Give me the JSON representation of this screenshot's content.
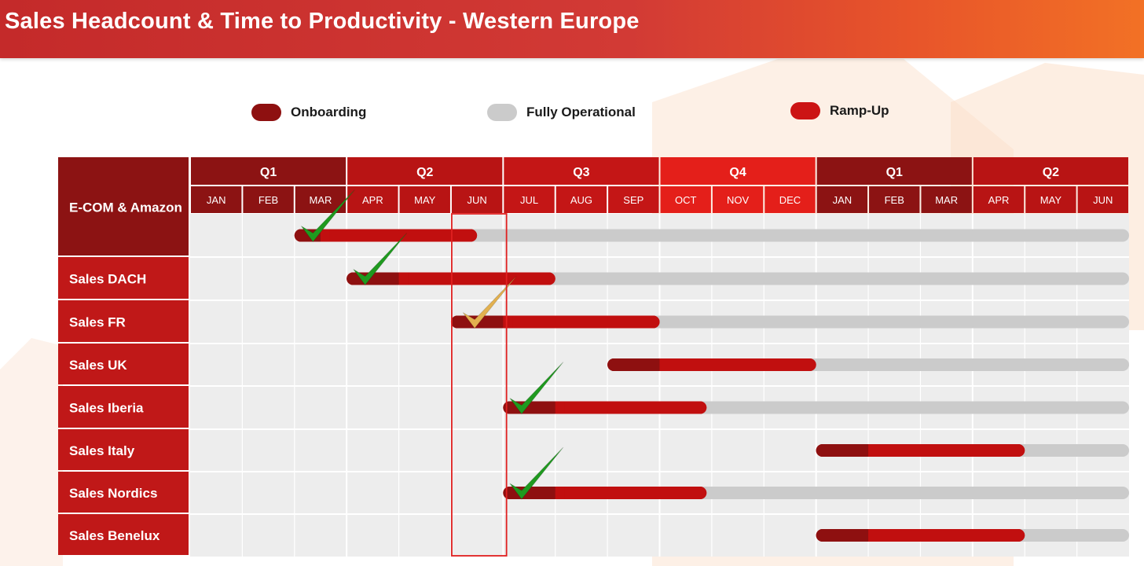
{
  "header": {
    "title": "Sales Headcount & Time to Productivity - Western Europe"
  },
  "legend": [
    {
      "label": "Onboarding",
      "color": "#8e1010"
    },
    {
      "label": "Fully Operational",
      "color": "#cbcbcb"
    },
    {
      "label": "Ramp-Up",
      "color": "#cc1414"
    }
  ],
  "chart_data": {
    "type": "gantt",
    "quarters": [
      {
        "label": "Q1",
        "color": "#8c1313"
      },
      {
        "label": "Q2",
        "color": "#b81414"
      },
      {
        "label": "Q3",
        "color": "#c41616"
      },
      {
        "label": "Q4",
        "color": "#e41f1a"
      },
      {
        "label": "Q1",
        "color": "#8c1313"
      },
      {
        "label": "Q2",
        "color": "#b81414"
      }
    ],
    "months": [
      "JAN",
      "FEB",
      "MAR",
      "APR",
      "MAY",
      "JUN",
      "JUL",
      "AUG",
      "SEP",
      "OCT",
      "NOV",
      "DEC",
      "JAN",
      "FEB",
      "MAR",
      "APR",
      "MAY",
      "JUN"
    ],
    "highlight_month_index": 5,
    "rows": [
      {
        "label": "E-COM & Amazon",
        "onboarding": [
          2.0,
          2.5
        ],
        "rampup": [
          2.5,
          5.5
        ],
        "operational_end": 18,
        "check": "green",
        "check_at": 2.4
      },
      {
        "label": "Sales DACH",
        "onboarding": [
          3.0,
          4.0
        ],
        "rampup": [
          4.0,
          7.0
        ],
        "operational_end": 18,
        "check": "green",
        "check_at": 3.4
      },
      {
        "label": "Sales FR",
        "onboarding": [
          5.0,
          6.0
        ],
        "rampup": [
          6.0,
          9.0
        ],
        "operational_end": 18,
        "check": "amber",
        "check_at": 5.5
      },
      {
        "label": "Sales UK",
        "onboarding": [
          8.0,
          9.0
        ],
        "rampup": [
          9.0,
          12.0
        ],
        "operational_end": 18,
        "check": "",
        "check_at": 0
      },
      {
        "label": "Sales Iberia",
        "onboarding": [
          6.0,
          7.0
        ],
        "rampup": [
          7.0,
          9.9
        ],
        "operational_end": 18,
        "check": "green",
        "check_at": 6.4
      },
      {
        "label": "Sales Italy",
        "onboarding": [
          12.0,
          13.0
        ],
        "rampup": [
          13.0,
          16.0
        ],
        "operational_end": 18,
        "check": "",
        "check_at": 0
      },
      {
        "label": "Sales Nordics",
        "onboarding": [
          6.0,
          7.0
        ],
        "rampup": [
          7.0,
          9.9
        ],
        "operational_end": 18,
        "check": "green",
        "check_at": 6.4
      },
      {
        "label": "Sales Benelux",
        "onboarding": [
          12.0,
          13.0
        ],
        "rampup": [
          13.0,
          16.0
        ],
        "operational_end": 18,
        "check": "",
        "check_at": 0
      }
    ],
    "colors": {
      "onboarding": "#8e1010",
      "rampup": "#c10f0f",
      "operational": "#cbcbcb",
      "row_label_bg": "#c01818",
      "first_row_label_bg": "#8c1313",
      "grid_bg": "#ededed",
      "check_green": "#1f9a1f",
      "check_amber": "#e3b14f",
      "highlight_border": "#e02020"
    }
  }
}
